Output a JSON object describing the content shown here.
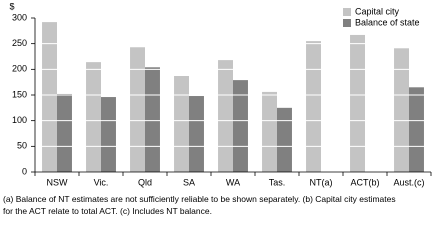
{
  "chart_data": {
    "type": "bar",
    "y_label": "$",
    "categories": [
      "NSW",
      "Vic.",
      "Qld",
      "SA",
      "WA",
      "Tas.",
      "NT(a)",
      "ACT(b)",
      "Aust.(c)"
    ],
    "series": [
      {
        "name": "Capital city",
        "color": "#c4c4c4",
        "values": [
          292,
          214,
          243,
          187,
          218,
          156,
          255,
          267,
          241
        ]
      },
      {
        "name": "Balance of state",
        "color": "#808080",
        "values": [
          152,
          146,
          204,
          148,
          179,
          125,
          null,
          null,
          165
        ]
      }
    ],
    "ylim": [
      0,
      300
    ],
    "yticks": [
      0,
      50,
      100,
      150,
      200,
      250,
      300
    ],
    "grid": true,
    "legend": "top-right",
    "footnotes": [
      "(a) Balance of NT estimates are not sufficiently reliable to be shown separately. (b) Capital city estimates",
      "for the ACT relate to total ACT. (c) Includes NT balance."
    ]
  }
}
